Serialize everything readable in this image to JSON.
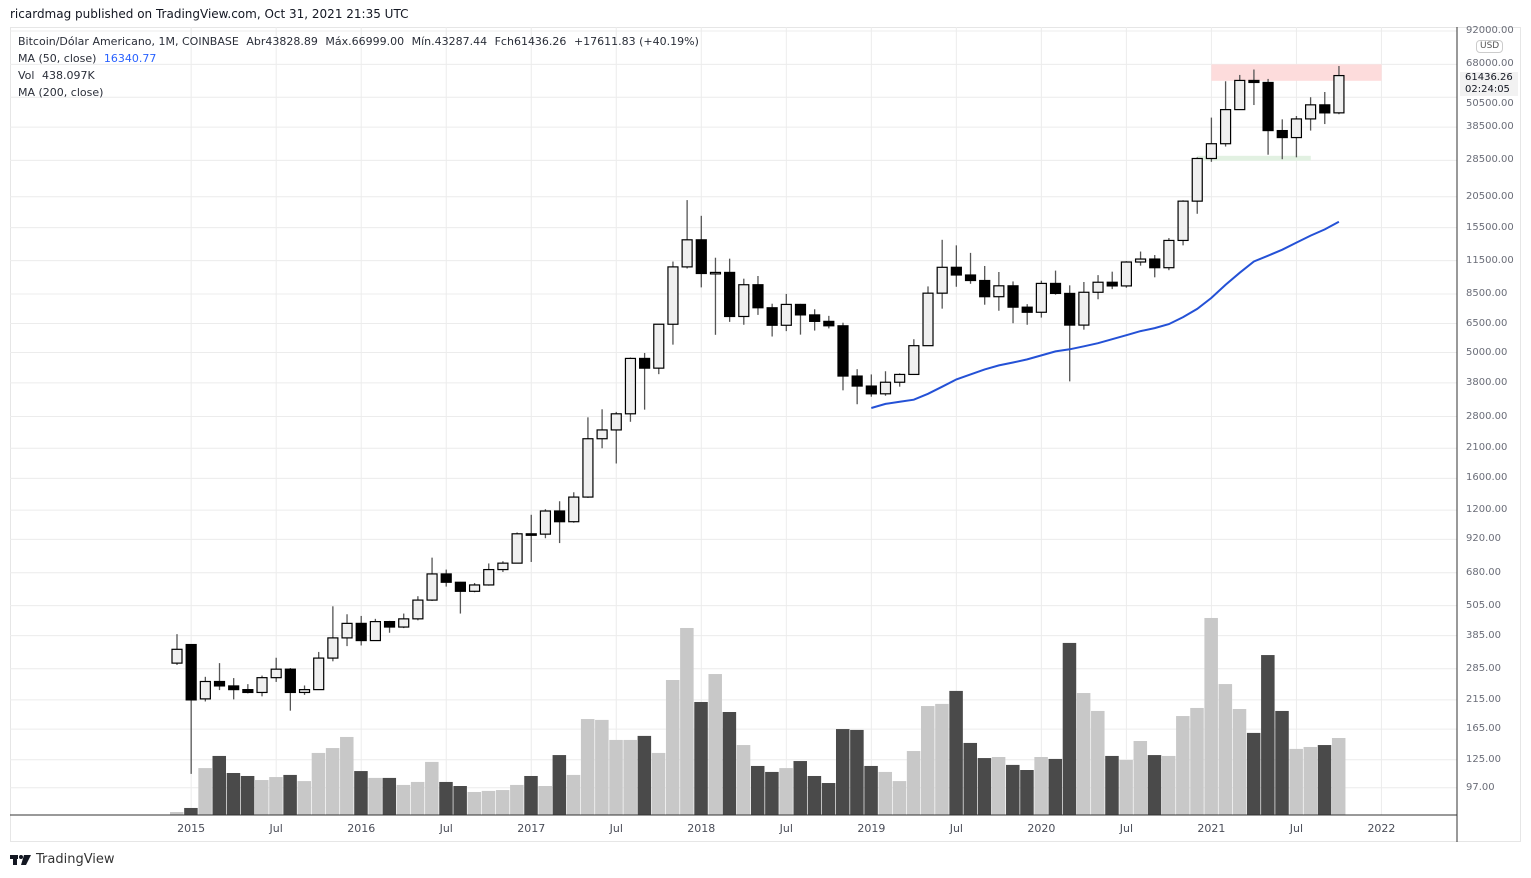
{
  "header": {
    "published": "ricardmag published on TradingView.com, Oct 31, 2021 21:35 UTC"
  },
  "legend": {
    "symbol": "Bitcoin/Dólar Americano, 1M, COINBASE",
    "open": "Abr43828.89",
    "high": "Máx.66999.00",
    "low": "Mín.43287.44",
    "close": "Fch61436.26",
    "change": "+17611.83 (+40.19%)",
    "ma50_label": "MA (50, close)",
    "ma50_value": "16340.77",
    "vol_label": "Vol",
    "vol_value": "438.097K",
    "ma200_label": "MA (200, close)"
  },
  "price_axis": {
    "currency": "USD",
    "last_price": "61436.26",
    "countdown": "02:24:05"
  },
  "footer": {
    "brand": "TradingView"
  },
  "colors": {
    "up_fill": "#f0f0f0",
    "down_fill": "#000000",
    "wick": "#555555",
    "vol_up": "#c8c8c8",
    "vol_down": "#4a4a4a",
    "ma50": "#2451d6",
    "resistance_zone": "#fddcdc",
    "support_zone": "#e2f1e2"
  },
  "chart_data": {
    "type": "candlestick",
    "title": "Bitcoin/Dólar Americano, 1M, COINBASE",
    "scale": "log",
    "ylim": [
      80,
      92000
    ],
    "yticks": [
      92000,
      68000,
      50500,
      38500,
      28500,
      20500,
      15500,
      11500,
      8500,
      6500,
      5000,
      3800,
      2800,
      2100,
      1600,
      1200,
      920,
      680,
      505,
      385,
      285,
      215,
      165,
      125,
      97
    ],
    "ytick_labels": [
      "92000.00",
      "68000.00",
      "50500.00",
      "38500.00",
      "28500.00",
      "20500.00",
      "15500.00",
      "11500.00",
      "8500.00",
      "6500.00",
      "5000.00",
      "3800.00",
      "2800.00",
      "2100.00",
      "1600.00",
      "1200.00",
      "920.00",
      "680.00",
      "505.00",
      "385.00",
      "285.00",
      "215.00",
      "165.00",
      "125.00",
      "97.00"
    ],
    "xticks": [
      {
        "label": "2015",
        "month": 1
      },
      {
        "label": "Jul",
        "month": 7
      },
      {
        "label": "2016",
        "month": 13
      },
      {
        "label": "Jul",
        "month": 19
      },
      {
        "label": "2017",
        "month": 25
      },
      {
        "label": "Jul",
        "month": 31
      },
      {
        "label": "2018",
        "month": 37
      },
      {
        "label": "Jul",
        "month": 43
      },
      {
        "label": "2019",
        "month": 49
      },
      {
        "label": "Jul",
        "month": 55
      },
      {
        "label": "2020",
        "month": 61
      },
      {
        "label": "Jul",
        "month": 67
      },
      {
        "label": "2021",
        "month": 73
      },
      {
        "label": "Jul",
        "month": 79
      },
      {
        "label": "2022",
        "month": 85
      }
    ],
    "start": "2014-12",
    "ohlc": [
      [
        300,
        390,
        295,
        340
      ],
      [
        355,
        355,
        110,
        215
      ],
      [
        217,
        265,
        212,
        254
      ],
      [
        254,
        300,
        235,
        244
      ],
      [
        244,
        262,
        216,
        236
      ],
      [
        236,
        248,
        228,
        230
      ],
      [
        230,
        268,
        222,
        263
      ],
      [
        263,
        315,
        253,
        284
      ],
      [
        284,
        287,
        195,
        230
      ],
      [
        230,
        245,
        225,
        236
      ],
      [
        236,
        332,
        236,
        314
      ],
      [
        314,
        502,
        305,
        377
      ],
      [
        377,
        467,
        350,
        430
      ],
      [
        430,
        460,
        352,
        368
      ],
      [
        368,
        448,
        368,
        437
      ],
      [
        437,
        440,
        395,
        416
      ],
      [
        416,
        470,
        412,
        448
      ],
      [
        448,
        550,
        442,
        531
      ],
      [
        531,
        780,
        527,
        673
      ],
      [
        673,
        700,
        600,
        624
      ],
      [
        624,
        626,
        470,
        575
      ],
      [
        575,
        620,
        570,
        609
      ],
      [
        609,
        740,
        605,
        700
      ],
      [
        700,
        755,
        685,
        742
      ],
      [
        742,
        980,
        740,
        968
      ],
      [
        968,
        1150,
        750,
        965
      ],
      [
        965,
        1210,
        930,
        1190
      ],
      [
        1190,
        1300,
        890,
        1080
      ],
      [
        1080,
        1410,
        1070,
        1350
      ],
      [
        1350,
        2780,
        1340,
        2290
      ],
      [
        2290,
        2990,
        2100,
        2480
      ],
      [
        2480,
        2920,
        1830,
        2870
      ],
      [
        2870,
        4780,
        2670,
        4740
      ],
      [
        4740,
        4980,
        2980,
        4340
      ],
      [
        4340,
        6470,
        4110,
        6460
      ],
      [
        6460,
        11400,
        5370,
        10860
      ],
      [
        10860,
        19890,
        10700,
        13880
      ],
      [
        13880,
        17250,
        9020,
        10230
      ],
      [
        10230,
        11800,
        5870,
        10330
      ],
      [
        10330,
        11700,
        6600,
        6930
      ],
      [
        6930,
        9760,
        6430,
        9240
      ],
      [
        9240,
        10000,
        7030,
        7500
      ],
      [
        7500,
        7780,
        5780,
        6400
      ],
      [
        6400,
        8500,
        6070,
        7730
      ],
      [
        7730,
        7770,
        5880,
        7030
      ],
      [
        7030,
        7400,
        6100,
        6630
      ],
      [
        6630,
        6970,
        6220,
        6370
      ],
      [
        6370,
        6550,
        3550,
        4040
      ],
      [
        4040,
        4300,
        3130,
        3690
      ],
      [
        3690,
        4100,
        3350,
        3440
      ],
      [
        3440,
        4220,
        3380,
        3820
      ],
      [
        3820,
        4140,
        3670,
        4100
      ],
      [
        4100,
        5640,
        4090,
        5320
      ],
      [
        5320,
        9100,
        5320,
        8560
      ],
      [
        8560,
        13880,
        7440,
        10820
      ],
      [
        10820,
        13200,
        9070,
        10090
      ],
      [
        10090,
        12330,
        9320,
        9600
      ],
      [
        9600,
        10950,
        7710,
        8290
      ],
      [
        8290,
        10370,
        7300,
        9150
      ],
      [
        9150,
        9520,
        6520,
        7540
      ],
      [
        7540,
        7750,
        6430,
        7200
      ],
      [
        7200,
        9580,
        6860,
        9350
      ],
      [
        9350,
        10500,
        8440,
        8540
      ],
      [
        8540,
        9190,
        3850,
        6410
      ],
      [
        6410,
        9470,
        6150,
        8630
      ],
      [
        8630,
        10080,
        8100,
        9450
      ],
      [
        9450,
        10400,
        8880,
        9140
      ],
      [
        9140,
        11440,
        8990,
        11350
      ],
      [
        11350,
        12480,
        10980,
        11660
      ],
      [
        11660,
        12090,
        9880,
        10780
      ],
      [
        10780,
        14100,
        10540,
        13800
      ],
      [
        13800,
        19860,
        13200,
        19700
      ],
      [
        19700,
        29300,
        17570,
        28990
      ],
      [
        28990,
        41990,
        28130,
        33140
      ],
      [
        33140,
        58350,
        32300,
        45140
      ],
      [
        45140,
        61790,
        45000,
        58790
      ],
      [
        58790,
        64900,
        47050,
        57720
      ],
      [
        57720,
        59600,
        30000,
        37330
      ],
      [
        37330,
        41330,
        28800,
        35040
      ],
      [
        35040,
        42600,
        29300,
        41490
      ],
      [
        41490,
        50500,
        37330,
        47130
      ],
      [
        47130,
        52950,
        39600,
        43820
      ],
      [
        43828.89,
        66999,
        43287.44,
        61436.26
      ]
    ],
    "volume_k": [
      17,
      40,
      267,
      336,
      239,
      222,
      199,
      216,
      228,
      193,
      353,
      381,
      444,
      250,
      211,
      211,
      171,
      188,
      302,
      188,
      165,
      131,
      137,
      142,
      171,
      222,
      165,
      341,
      228,
      546,
      541,
      427,
      427,
      450,
      353,
      768,
      1064,
      643,
      802,
      586,
      398,
      279,
      245,
      267,
      307,
      222,
      182,
      489,
      484,
      279,
      245,
      193,
      364,
      620,
      632,
      706,
      410,
      324,
      330,
      285,
      256,
      330,
      319,
      979,
      694,
      592,
      336,
      313,
      421,
      341,
      336,
      563,
      609,
      1121,
      745,
      603,
      467,
      910,
      592,
      376,
      387,
      398,
      438.097
    ],
    "ma50": {
      "start": "2019-01",
      "values": [
        3025,
        3140,
        3200,
        3260,
        3440,
        3670,
        3920,
        4100,
        4290,
        4450,
        4570,
        4700,
        4870,
        5050,
        5150,
        5290,
        5440,
        5640,
        5850,
        6070,
        6240,
        6470,
        6890,
        7420,
        8200,
        9230,
        10300,
        11400,
        12020,
        12690,
        13530,
        14420,
        15250,
        16340.77
      ]
    },
    "zones": [
      {
        "name": "resistance",
        "from_month": "2021-01",
        "to_month": "2022-02",
        "price_low": 58600,
        "price_high": 68000
      },
      {
        "name": "support",
        "from_month": "2020-12",
        "to_month": "2021-09",
        "price_low": 28400,
        "price_high": 29700
      }
    ]
  }
}
